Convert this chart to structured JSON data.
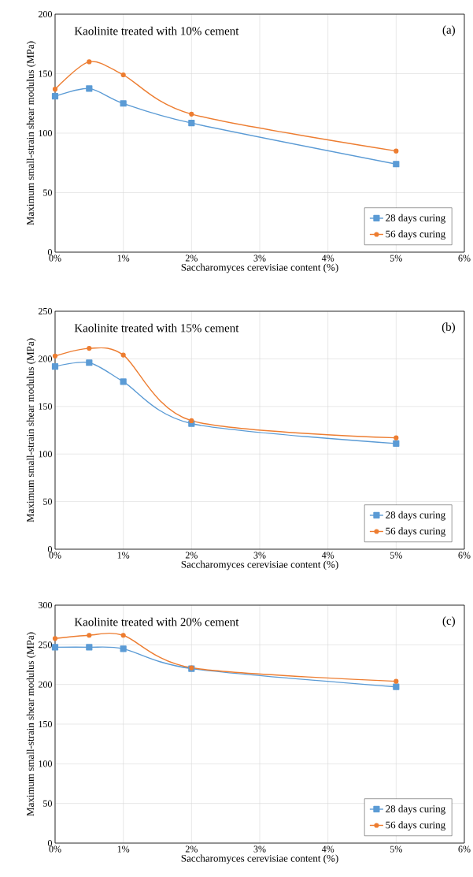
{
  "chart_data": [
    {
      "type": "line",
      "title": "Kaolinite treated with 10% cement",
      "annotations": [
        "(a)"
      ],
      "xlabel": "Saccharomyces cerevisiae content (%)",
      "ylabel": "Maximum small-strain shear modulus (MPa)",
      "x": [
        0,
        0.5,
        1,
        2,
        5
      ],
      "series": [
        {
          "name": "28 days curing",
          "color": "#5b9bd5",
          "marker": "square",
          "values": [
            131,
            137.5,
            125,
            108.5,
            74
          ]
        },
        {
          "name": "56 days curing",
          "color": "#ed7d31",
          "marker": "circle",
          "values": [
            137,
            160,
            149,
            116,
            85
          ]
        }
      ],
      "xlim": [
        0,
        6
      ],
      "xticks": [
        {
          "value": 0,
          "label": "0%"
        },
        {
          "value": 1,
          "label": "1%"
        },
        {
          "value": 2,
          "label": "2%"
        },
        {
          "value": 3,
          "label": "3%"
        },
        {
          "value": 4,
          "label": "4%"
        },
        {
          "value": 5,
          "label": "5%"
        },
        {
          "value": 6,
          "label": "6%"
        }
      ],
      "ylim": [
        0,
        200
      ],
      "yticks": [
        0,
        50,
        100,
        150,
        200
      ],
      "grid": true,
      "legend": "bottom right"
    },
    {
      "type": "line",
      "title": "Kaolinite treated with 15% cement",
      "annotations": [
        "(b)"
      ],
      "xlabel": "Saccharomyces cerevisiae content (%)",
      "ylabel": "Maximum small-strain shear modulus (MPa)",
      "x": [
        0,
        0.5,
        1,
        2,
        5
      ],
      "series": [
        {
          "name": "28 days curing",
          "color": "#5b9bd5",
          "marker": "square",
          "values": [
            192,
            196,
            176,
            132,
            111
          ]
        },
        {
          "name": "56 days curing",
          "color": "#ed7d31",
          "marker": "circle",
          "values": [
            203,
            211,
            204,
            135,
            117
          ]
        }
      ],
      "xlim": [
        0,
        6
      ],
      "xticks": [
        {
          "value": 0,
          "label": "0%"
        },
        {
          "value": 1,
          "label": "1%"
        },
        {
          "value": 2,
          "label": "2%"
        },
        {
          "value": 3,
          "label": "3%"
        },
        {
          "value": 4,
          "label": "4%"
        },
        {
          "value": 5,
          "label": "5%"
        },
        {
          "value": 6,
          "label": "6%"
        }
      ],
      "ylim": [
        0,
        250
      ],
      "yticks": [
        0,
        50,
        100,
        150,
        200,
        250
      ],
      "grid": true,
      "legend": "bottom right"
    },
    {
      "type": "line",
      "title": "Kaolinite treated with 20% cement",
      "annotations": [
        "(c)"
      ],
      "xlabel": "Saccharomyces cerevisiae content (%)",
      "ylabel": "Maximum small-strain shear modulus (MPa)",
      "x": [
        0,
        0.5,
        1,
        2,
        5
      ],
      "series": [
        {
          "name": "28 days curing",
          "color": "#5b9bd5",
          "marker": "square",
          "values": [
            247,
            247,
            245,
            220,
            197
          ]
        },
        {
          "name": "56 days curing",
          "color": "#ed7d31",
          "marker": "circle",
          "values": [
            258,
            262,
            262,
            221,
            204
          ]
        }
      ],
      "xlim": [
        0,
        6
      ],
      "xticks": [
        {
          "value": 0,
          "label": "0%"
        },
        {
          "value": 1,
          "label": "1%"
        },
        {
          "value": 2,
          "label": "2%"
        },
        {
          "value": 3,
          "label": "3%"
        },
        {
          "value": 4,
          "label": "4%"
        },
        {
          "value": 5,
          "label": "5%"
        },
        {
          "value": 6,
          "label": "6%"
        }
      ],
      "ylim": [
        0,
        300
      ],
      "yticks": [
        0,
        50,
        100,
        150,
        200,
        250,
        300
      ],
      "grid": true,
      "legend": "bottom right"
    }
  ]
}
